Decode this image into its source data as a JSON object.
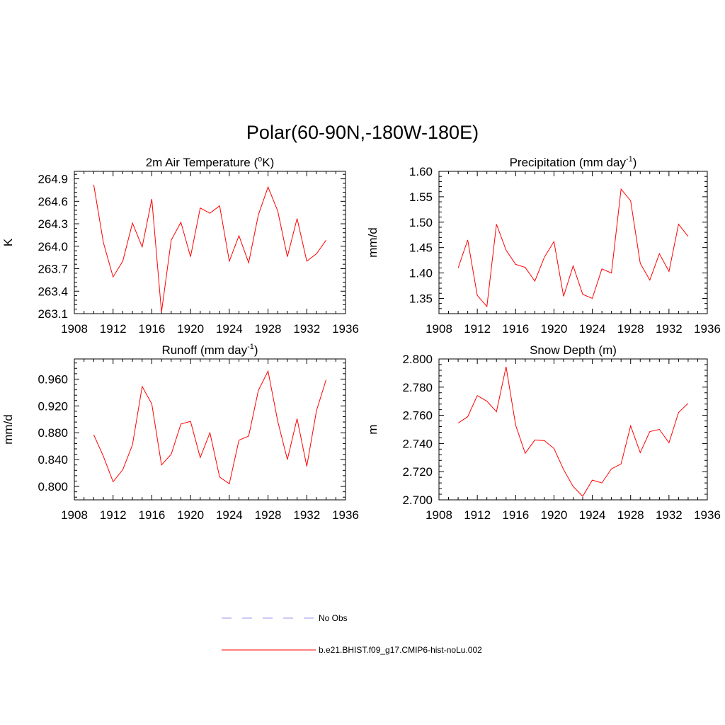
{
  "figure_title": "Polar(60-90N,-180W-180E)",
  "legend": {
    "obs_label": "No Obs",
    "model_label": "b.e21.BHIST.f09_g17.CMIP6-hist-noLu.002",
    "obs_color": "#aaaaee",
    "model_color": "#ff0000"
  },
  "chart_data": [
    {
      "type": "line",
      "title": "2m Air Temperature (",
      "title_sup": "o",
      "title_tail": "K)",
      "ylabel": "K",
      "xlim": [
        1908,
        1936
      ],
      "ylim": [
        263.1,
        265.0
      ],
      "xticks": [
        "1908",
        "1912",
        "1916",
        "1920",
        "1924",
        "1928",
        "1932",
        "1936"
      ],
      "yticks": [
        "263.1",
        "263.4",
        "263.7",
        "264.0",
        "264.3",
        "264.6",
        "264.9"
      ],
      "series": [
        {
          "color": "#ff0000",
          "x": [
            1910,
            1911,
            1912,
            1913,
            1914,
            1915,
            1916,
            1917,
            1918,
            1919,
            1920,
            1921,
            1922,
            1923,
            1924,
            1925,
            1926,
            1927,
            1928,
            1929,
            1930,
            1931,
            1932,
            1933,
            1934
          ],
          "y": [
            264.82,
            264.05,
            263.59,
            263.8,
            264.31,
            263.99,
            264.63,
            263.12,
            264.08,
            264.32,
            263.86,
            264.51,
            264.44,
            264.54,
            263.8,
            264.14,
            263.78,
            264.42,
            264.79,
            264.47,
            263.86,
            264.37,
            263.8,
            263.9,
            264.08
          ]
        }
      ]
    },
    {
      "type": "line",
      "title": "Precipitation (mm day",
      "title_sup": "-1",
      "title_tail": ")",
      "ylabel": "mm/d",
      "xlim": [
        1908,
        1936
      ],
      "ylim": [
        1.32,
        1.6
      ],
      "xticks": [
        "1908",
        "1912",
        "1916",
        "1920",
        "1924",
        "1928",
        "1932",
        "1936"
      ],
      "yticks": [
        "1.35",
        "1.40",
        "1.45",
        "1.50",
        "1.55",
        "1.60"
      ],
      "series": [
        {
          "color": "#ff0000",
          "x": [
            1910,
            1911,
            1912,
            1913,
            1914,
            1915,
            1916,
            1917,
            1918,
            1919,
            1920,
            1921,
            1922,
            1923,
            1924,
            1925,
            1926,
            1927,
            1928,
            1929,
            1930,
            1931,
            1932,
            1933,
            1934
          ],
          "y": [
            1.41,
            1.465,
            1.356,
            1.334,
            1.496,
            1.445,
            1.417,
            1.411,
            1.384,
            1.431,
            1.462,
            1.354,
            1.414,
            1.358,
            1.35,
            1.408,
            1.4,
            1.565,
            1.542,
            1.419,
            1.386,
            1.438,
            1.403,
            1.496,
            1.472
          ]
        }
      ]
    },
    {
      "type": "line",
      "title": "Runoff (mm day",
      "title_sup": "-1",
      "title_tail": ")",
      "ylabel": "mm/d",
      "xlim": [
        1908,
        1936
      ],
      "ylim": [
        0.78,
        0.99
      ],
      "xticks": [
        "1908",
        "1912",
        "1916",
        "1920",
        "1924",
        "1928",
        "1932",
        "1936"
      ],
      "yticks": [
        "0.800",
        "0.840",
        "0.880",
        "0.920",
        "0.960"
      ],
      "series": [
        {
          "color": "#ff0000",
          "x": [
            1910,
            1911,
            1912,
            1913,
            1914,
            1915,
            1916,
            1917,
            1918,
            1919,
            1920,
            1921,
            1922,
            1923,
            1924,
            1925,
            1926,
            1927,
            1928,
            1929,
            1930,
            1931,
            1932,
            1933,
            1934
          ],
          "y": [
            0.877,
            0.845,
            0.807,
            0.825,
            0.862,
            0.949,
            0.923,
            0.832,
            0.848,
            0.893,
            0.897,
            0.843,
            0.88,
            0.814,
            0.804,
            0.869,
            0.875,
            0.943,
            0.972,
            0.897,
            0.84,
            0.901,
            0.83,
            0.913,
            0.959
          ]
        }
      ]
    },
    {
      "type": "line",
      "title": "Snow Depth (m)",
      "title_sup": "",
      "title_tail": "",
      "ylabel": "m",
      "xlim": [
        1908,
        1936
      ],
      "ylim": [
        2.7,
        2.8
      ],
      "xticks": [
        "1908",
        "1912",
        "1916",
        "1920",
        "1924",
        "1928",
        "1932",
        "1936"
      ],
      "yticks": [
        "2.700",
        "2.720",
        "2.740",
        "2.760",
        "2.780",
        "2.800"
      ],
      "series": [
        {
          "color": "#ff0000",
          "x": [
            1910,
            1911,
            1912,
            1913,
            1914,
            1915,
            1916,
            1917,
            1918,
            1919,
            1920,
            1921,
            1922,
            1923,
            1924,
            1925,
            1926,
            1927,
            1928,
            1929,
            1930,
            1931,
            1932,
            1933,
            1934
          ],
          "y": [
            2.7545,
            2.759,
            2.774,
            2.77,
            2.7625,
            2.7945,
            2.753,
            2.733,
            2.7425,
            2.742,
            2.7365,
            2.7215,
            2.7095,
            2.7025,
            2.714,
            2.712,
            2.722,
            2.7255,
            2.7525,
            2.7335,
            2.7485,
            2.75,
            2.7405,
            2.762,
            2.7685
          ]
        }
      ]
    }
  ]
}
